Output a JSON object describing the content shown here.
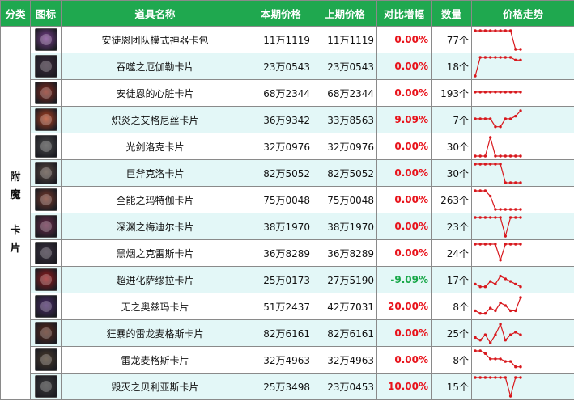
{
  "headers": {
    "category": "分类",
    "icon": "图标",
    "name": "道具名称",
    "current_price": "本期价格",
    "previous_price": "上期价格",
    "change": "对比增幅",
    "count": "数量",
    "trend": "价格走势"
  },
  "category": {
    "lines": [
      "附",
      "魔",
      "",
      "卡",
      "片"
    ]
  },
  "colors": {
    "header_bg": "#1fa84f",
    "alt_row": "#e3f7f7",
    "up": "#e8131b",
    "down": "#1aa84a",
    "trend_line": "#d8181d"
  },
  "rows": [
    {
      "icon": "purple-weapon-pack-icon",
      "icon_color": "#7a3f8f",
      "name": "安徒恩团队模式神器卡包",
      "current": "11万1119",
      "previous": "11万1119",
      "change": "0.00%",
      "change_dir": "up",
      "count": "77个",
      "trend": [
        8,
        8,
        8,
        8,
        8,
        8,
        8,
        8,
        1,
        1
      ]
    },
    {
      "icon": "dark-card-icon",
      "icon_color": "#3a2a3a",
      "name": "吞噬之厄伽勒卡片",
      "current": "23万0543",
      "previous": "23万0543",
      "change": "0.00%",
      "change_dir": "up",
      "count": "18个",
      "trend": [
        1,
        8,
        8,
        8,
        8,
        8,
        8,
        8,
        7,
        7
      ]
    },
    {
      "icon": "red-heart-card-icon",
      "icon_color": "#8a2a1c",
      "name": "安徒恩的心脏卡片",
      "current": "68万2344",
      "previous": "68万2344",
      "change": "0.00%",
      "change_dir": "up",
      "count": "193个",
      "trend": [
        5,
        5,
        5,
        5,
        5,
        5,
        5,
        5,
        5,
        5
      ]
    },
    {
      "icon": "flame-card-icon",
      "icon_color": "#b5421e",
      "name": "炽炎之艾格尼丝卡片",
      "current": "36万9342",
      "previous": "33万8563",
      "change": "9.09%",
      "change_dir": "up",
      "count": "7个",
      "trend": [
        5,
        5,
        5,
        5,
        2,
        2,
        5,
        5,
        6,
        8
      ]
    },
    {
      "icon": "sword-card-icon",
      "icon_color": "#4a4a4a",
      "name": "光剑洛克卡片",
      "current": "32万0976",
      "previous": "32万0976",
      "change": "0.00%",
      "change_dir": "up",
      "count": "30个",
      "trend": [
        1,
        1,
        1,
        8,
        1,
        1,
        1,
        1,
        1,
        1
      ]
    },
    {
      "icon": "axe-card-icon",
      "icon_color": "#5a4a40",
      "name": "巨斧克洛卡片",
      "current": "82万5052",
      "previous": "82万5052",
      "change": "0.00%",
      "change_dir": "up",
      "count": "30个",
      "trend": [
        8,
        8,
        8,
        8,
        8,
        8,
        1,
        1,
        1,
        1
      ]
    },
    {
      "icon": "mage-card-icon",
      "icon_color": "#7a3a2a",
      "name": "全能之玛特伽卡片",
      "current": "75万0048",
      "previous": "75万0048",
      "change": "0.00%",
      "change_dir": "up",
      "count": "263个",
      "trend": [
        8,
        8,
        8,
        6,
        1,
        1,
        1,
        1,
        1,
        1
      ]
    },
    {
      "icon": "abyss-card-icon",
      "icon_color": "#6a2a4a",
      "name": "深渊之梅迪尔卡片",
      "current": "38万1970",
      "previous": "38万1970",
      "change": "0.00%",
      "change_dir": "up",
      "count": "23个",
      "trend": [
        8,
        8,
        8,
        8,
        8,
        8,
        1,
        8,
        8,
        8
      ]
    },
    {
      "icon": "shadow-card-icon",
      "icon_color": "#3a3040",
      "name": "黑烟之克雷斯卡片",
      "current": "36万8289",
      "previous": "36万8289",
      "change": "0.00%",
      "change_dir": "up",
      "count": "24个",
      "trend": [
        8,
        8,
        8,
        8,
        8,
        2,
        8,
        8,
        8,
        8
      ]
    },
    {
      "icon": "evolved-card-icon",
      "icon_color": "#9a1a1a",
      "name": "超进化萨缪拉卡片",
      "current": "25万0173",
      "previous": "27万5190",
      "change": "-9.09%",
      "change_dir": "down",
      "count": "17个",
      "trend": [
        3,
        2,
        2,
        4,
        3,
        6,
        5,
        4,
        3,
        2
      ]
    },
    {
      "icon": "void-card-icon",
      "icon_color": "#4a2a6a",
      "name": "无之奥兹玛卡片",
      "current": "51万2437",
      "previous": "42万7031",
      "change": "20.00%",
      "change_dir": "up",
      "count": "8个",
      "trend": [
        3,
        2,
        2,
        4,
        3,
        6,
        5,
        3,
        3,
        8
      ]
    },
    {
      "icon": "berserk-dragon-card-icon",
      "icon_color": "#5a2a1a",
      "name": "狂暴的雷龙麦格斯卡片",
      "current": "82万6161",
      "previous": "82万6161",
      "change": "0.00%",
      "change_dir": "up",
      "count": "25个",
      "trend": [
        3,
        2,
        4,
        1,
        4,
        8,
        2,
        4,
        5,
        4
      ]
    },
    {
      "icon": "dragon-card-icon",
      "icon_color": "#4a3a2a",
      "name": "雷龙麦格斯卡片",
      "current": "32万4963",
      "previous": "32万4963",
      "change": "0.00%",
      "change_dir": "up",
      "count": "8个",
      "trend": [
        8,
        8,
        7,
        5,
        5,
        5,
        4,
        4,
        2,
        2
      ]
    },
    {
      "icon": "ruin-card-icon",
      "icon_color": "#3a3a3a",
      "name": "毁灭之贝利亚斯卡片",
      "current": "25万3498",
      "previous": "23万0453",
      "change": "10.00%",
      "change_dir": "up",
      "count": "15个",
      "trend": [
        8,
        8,
        8,
        8,
        8,
        8,
        8,
        1,
        8,
        8
      ]
    }
  ]
}
